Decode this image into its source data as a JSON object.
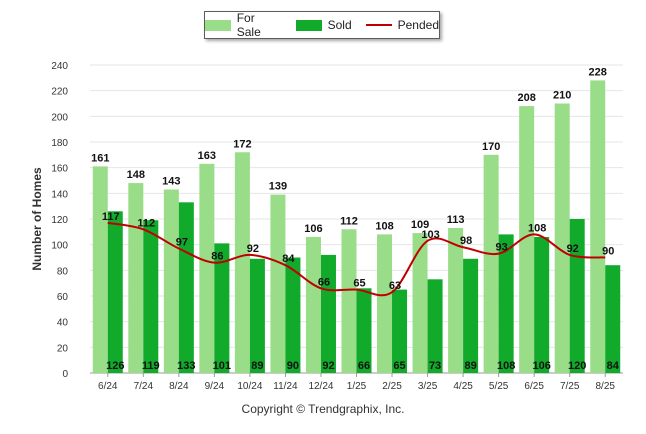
{
  "chart_data": {
    "type": "bar",
    "categories": [
      "6/24",
      "7/24",
      "8/24",
      "9/24",
      "10/24",
      "11/24",
      "12/24",
      "1/25",
      "2/25",
      "3/25",
      "4/25",
      "5/25",
      "6/25",
      "7/25",
      "8/25"
    ],
    "series": [
      {
        "name": "For Sale",
        "type": "bar",
        "color": "#99dd88",
        "values": [
          161,
          148,
          143,
          163,
          172,
          139,
          106,
          112,
          108,
          109,
          113,
          170,
          208,
          210,
          228
        ]
      },
      {
        "name": "Sold",
        "type": "bar",
        "color": "#11aa2b",
        "values": [
          126,
          119,
          133,
          101,
          89,
          90,
          92,
          66,
          65,
          73,
          89,
          108,
          106,
          120,
          84
        ]
      },
      {
        "name": "Pended",
        "type": "line",
        "color": "#c00000",
        "values": [
          117,
          112,
          97,
          86,
          92,
          84,
          66,
          65,
          63,
          103,
          98,
          93,
          108,
          92,
          90
        ]
      }
    ],
    "ylabel": "Number of Homes",
    "xlabel": "",
    "ylim": [
      0,
      240
    ],
    "yticks": [
      0,
      20,
      40,
      60,
      80,
      100,
      120,
      140,
      160,
      180,
      200,
      220,
      240
    ],
    "grid": true,
    "legend_position": "top-center"
  },
  "footer": {
    "copyright": "Copyright © Trendgraphix, Inc."
  }
}
